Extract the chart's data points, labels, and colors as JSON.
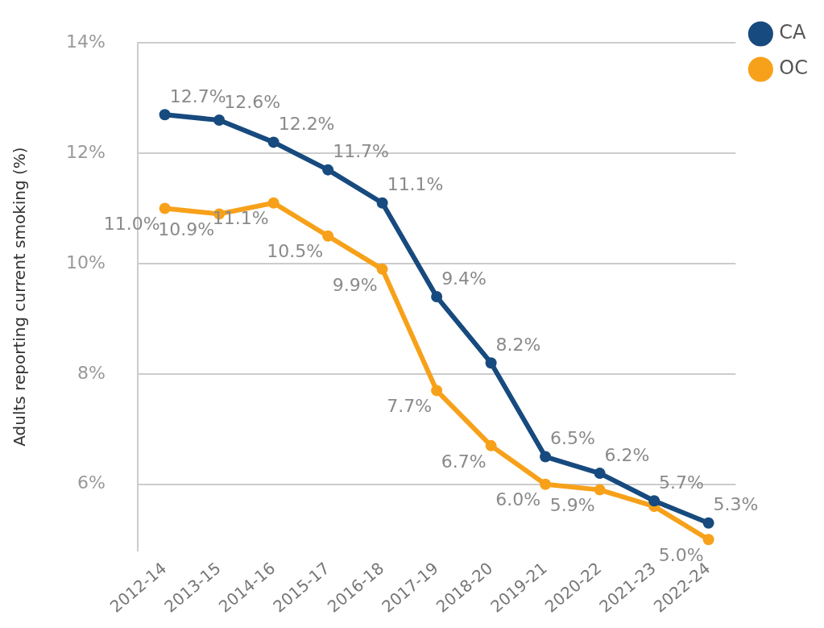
{
  "chart_data": {
    "type": "line",
    "ylabel": "Adults reporting current smoking (%)",
    "categories": [
      "2012-14",
      "2013-15",
      "2014-16",
      "2015-17",
      "2016-18",
      "2017-19",
      "2018-20",
      "2019-21",
      "2020-22",
      "2021-23",
      "2022-24"
    ],
    "series": [
      {
        "name": "CA",
        "color": "#174a7e",
        "values": [
          12.7,
          12.6,
          12.2,
          11.7,
          11.1,
          9.4,
          8.2,
          6.5,
          6.2,
          5.7,
          5.3
        ],
        "value_labels": [
          "12.7%",
          "12.6%",
          "12.2%",
          "11.7%",
          "11.1%",
          "9.4%",
          "8.2%",
          "6.5%",
          "6.2%",
          "5.7%",
          "5.3%"
        ]
      },
      {
        "name": "OC",
        "color": "#f7a11a",
        "values": [
          11.0,
          10.9,
          11.1,
          10.5,
          9.9,
          7.7,
          6.7,
          6.0,
          5.9,
          5.6,
          5.0
        ],
        "value_labels": [
          "11.0%",
          "10.9%",
          "11.1%",
          "10.5%",
          "9.9%",
          "7.7%",
          "6.7%",
          "6.0%",
          "5.9%",
          null,
          "5.0%"
        ]
      }
    ],
    "ylim": [
      4.8,
      14
    ],
    "yticks": [
      {
        "value": 6,
        "label": "6%"
      },
      {
        "value": 8,
        "label": "8%"
      },
      {
        "value": 10,
        "label": "10%"
      },
      {
        "value": 12,
        "label": "12%"
      },
      {
        "value": 14,
        "label": "14%"
      }
    ],
    "grid": "y",
    "legend": "top right",
    "marker": "circle",
    "line_style": "solid"
  }
}
